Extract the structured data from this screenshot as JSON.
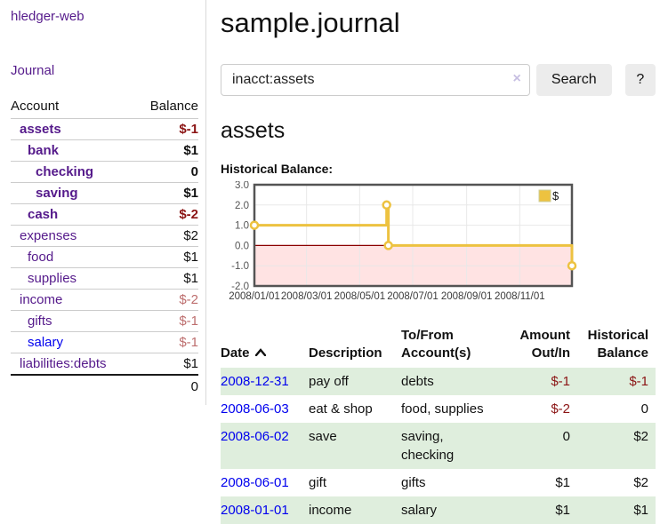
{
  "colors": {
    "link_purple": "#551a8b",
    "link_blue": "#0000ee",
    "negative_dark": "#8b1414",
    "negative_rose": "#bd6e6e",
    "row_green": "#dfeedd",
    "chart_line": "#edc240",
    "chart_negative_fill": "rgba(255,0,0,0.11)",
    "chart_zero_line": "#8b0000",
    "chart_grid": "#e8e8e8",
    "chart_border": "#545454"
  },
  "sidebar": {
    "app_title": "hledger-web",
    "journal_link": "Journal",
    "accounts": {
      "col_account": "Account",
      "col_balance": "Balance",
      "rows": [
        {
          "name": "assets",
          "balance": "$-1",
          "depth": 1,
          "bold": true,
          "amount": "negative"
        },
        {
          "name": "bank",
          "balance": "$1",
          "depth": 2,
          "bold": true,
          "amount": "normal"
        },
        {
          "name": "checking",
          "balance": "0",
          "depth": 3,
          "bold": true,
          "amount": "normal"
        },
        {
          "name": "saving",
          "balance": "$1",
          "depth": 3,
          "bold": true,
          "amount": "normal"
        },
        {
          "name": "cash",
          "balance": "$-2",
          "depth": 2,
          "bold": true,
          "amount": "negative"
        },
        {
          "name": "expenses",
          "balance": "$2",
          "depth": 1,
          "bold": false,
          "amount": "normal"
        },
        {
          "name": "food",
          "balance": "$1",
          "depth": 2,
          "bold": false,
          "amount": "normal"
        },
        {
          "name": "supplies",
          "balance": "$1",
          "depth": 2,
          "bold": false,
          "amount": "normal"
        },
        {
          "name": "income",
          "balance": "$-2",
          "depth": 1,
          "bold": false,
          "amount": "rose"
        },
        {
          "name": "gifts",
          "balance": "$-1",
          "depth": 2,
          "bold": false,
          "amount": "rose"
        },
        {
          "name": "salary",
          "balance": "$-1",
          "depth": 2,
          "bold": false,
          "amount": "rose",
          "link": "blue"
        },
        {
          "name": "liabilities:debts",
          "balance": "$1",
          "depth": 1,
          "bold": false,
          "amount": "normal"
        }
      ],
      "total": "0"
    }
  },
  "header": {
    "title": "sample.journal"
  },
  "search": {
    "value": "inacct:assets",
    "clear_icon": "×",
    "search_label": "Search",
    "help_label": "?"
  },
  "account_page": {
    "heading": "assets",
    "chart_title": "Historical Balance:"
  },
  "chart_data": {
    "type": "line",
    "step": true,
    "legend": "$",
    "x_start": "2008-01-01",
    "x_end": "2008-12-31",
    "points": [
      [
        "2008-01-01",
        1
      ],
      [
        "2008-06-01",
        2
      ],
      [
        "2008-06-03",
        0
      ],
      [
        "2008-12-31",
        -1
      ]
    ],
    "ylim": [
      -2,
      3
    ],
    "yticks": [
      3.0,
      2.0,
      1.0,
      0.0,
      -1.0,
      -2.0
    ],
    "xticks": [
      {
        "date": "2008-01-01",
        "label": "2008/01/01"
      },
      {
        "date": "2008-03-01",
        "label": "2008/03/01"
      },
      {
        "date": "2008-05-01",
        "label": "2008/05/01"
      },
      {
        "date": "2008-07-01",
        "label": "2008/07/01"
      },
      {
        "date": "2008-09-01",
        "label": "2008/09/01"
      },
      {
        "date": "2008-11-01",
        "label": "2008/11/01"
      }
    ],
    "negative_region_shaded": true,
    "grid": true,
    "legend_position": "top-right"
  },
  "register": {
    "columns": {
      "date": "Date",
      "description": "Description",
      "tofrom_line1": "To/From",
      "tofrom_line2": "Account(s)",
      "amount_line1": "Amount",
      "amount_line2": "Out/In",
      "balance_line1": "Historical",
      "balance_line2": "Balance"
    },
    "rows": [
      {
        "date": "2008-12-31",
        "description": "pay off",
        "accounts": "debts",
        "amount": "$-1",
        "amount_neg": true,
        "balance": "$-1",
        "balance_neg": true,
        "shaded": true
      },
      {
        "date": "2008-06-03",
        "description": "eat & shop",
        "accounts": "food, supplies",
        "amount": "$-2",
        "amount_neg": true,
        "balance": "0",
        "balance_neg": false,
        "shaded": false
      },
      {
        "date": "2008-06-02",
        "description": "save",
        "accounts": "saving,\nchecking",
        "amount": "0",
        "amount_neg": false,
        "balance": "$2",
        "balance_neg": false,
        "shaded": true
      },
      {
        "date": "2008-06-01",
        "description": "gift",
        "accounts": "gifts",
        "amount": "$1",
        "amount_neg": false,
        "balance": "$2",
        "balance_neg": false,
        "shaded": false
      },
      {
        "date": "2008-01-01",
        "description": "income",
        "accounts": "salary",
        "amount": "$1",
        "amount_neg": false,
        "balance": "$1",
        "balance_neg": false,
        "shaded": true
      }
    ]
  }
}
